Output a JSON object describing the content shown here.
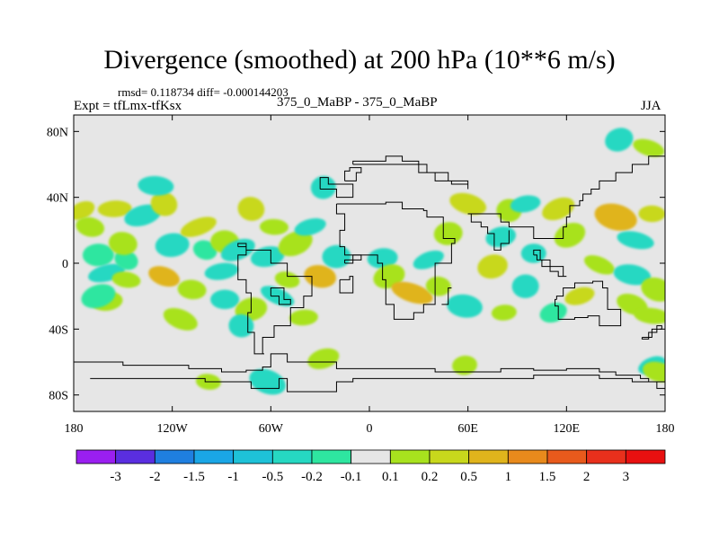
{
  "chart_data": {
    "type": "heatmap",
    "title": "Divergence (smoothed) at 200 hPa (10**6 m/s)",
    "stats": "rmsd= 0.118734 diff= -0.000144203",
    "experiment": "Expt = tfLmx-tfKsx",
    "case": "375_0_MaBP - 375_0_MaBP",
    "season": "JJA",
    "xlim": [
      -180,
      180
    ],
    "ylim": [
      -90,
      90
    ],
    "x_ticks": [
      {
        "value": -180,
        "label": "180"
      },
      {
        "value": -120,
        "label": "120W"
      },
      {
        "value": -60,
        "label": "60W"
      },
      {
        "value": 0,
        "label": "0"
      },
      {
        "value": 60,
        "label": "60E"
      },
      {
        "value": 120,
        "label": "120E"
      },
      {
        "value": 180,
        "label": "180"
      }
    ],
    "y_ticks": [
      {
        "value": 80,
        "label": "80N"
      },
      {
        "value": 40,
        "label": "40N"
      },
      {
        "value": 0,
        "label": "0"
      },
      {
        "value": -40,
        "label": "40S"
      },
      {
        "value": -80,
        "label": "80S"
      }
    ],
    "colorbar": {
      "levels": [
        "-3",
        "-2",
        "-1.5",
        "-1",
        "-0.5",
        "-0.2",
        "-0.1",
        "0.1",
        "0.2",
        "0.5",
        "1",
        "1.5",
        "2",
        "3"
      ],
      "colors": [
        "#9a1ff0",
        "#5a2ee0",
        "#1f7fe0",
        "#1aa6e6",
        "#1ec2d8",
        "#26d8c2",
        "#2ee6a0",
        "#e6e6e6",
        "#a8e21e",
        "#c8d81c",
        "#e0b41c",
        "#e88a1c",
        "#e85a1c",
        "#e8301c",
        "#e81010"
      ]
    },
    "background_color": "#e6e6e6",
    "outline_color": "#000000",
    "anomalies": [
      {
        "lon": -175,
        "lat": 32,
        "value": 0.3
      },
      {
        "lon": -170,
        "lat": 22,
        "value": 0.2
      },
      {
        "lon": -165,
        "lat": 5,
        "value": -0.15
      },
      {
        "lon": -160,
        "lat": -6,
        "value": -0.3
      },
      {
        "lon": -148,
        "lat": 2,
        "value": -0.15
      },
      {
        "lon": -150,
        "lat": 12,
        "value": 0.2
      },
      {
        "lon": -155,
        "lat": 33,
        "value": 0.3
      },
      {
        "lon": -138,
        "lat": 29,
        "value": -0.3
      },
      {
        "lon": -125,
        "lat": 36,
        "value": 0.3
      },
      {
        "lon": -148,
        "lat": -10,
        "value": 0.2
      },
      {
        "lon": -160,
        "lat": -23,
        "value": 0.2
      },
      {
        "lon": -165,
        "lat": -20,
        "value": -0.15
      },
      {
        "lon": -125,
        "lat": -8,
        "value": 0.6
      },
      {
        "lon": -108,
        "lat": -16,
        "value": 0.2
      },
      {
        "lon": -120,
        "lat": 11,
        "value": -0.3
      },
      {
        "lon": -104,
        "lat": 22,
        "value": 0.3
      },
      {
        "lon": -100,
        "lat": 8,
        "value": -0.15
      },
      {
        "lon": -88,
        "lat": 13,
        "value": 0.2
      },
      {
        "lon": -90,
        "lat": -5,
        "value": -0.3
      },
      {
        "lon": -80,
        "lat": 8,
        "value": -0.2
      },
      {
        "lon": -72,
        "lat": 33,
        "value": 0.3
      },
      {
        "lon": -58,
        "lat": 22,
        "value": 0.2
      },
      {
        "lon": -62,
        "lat": 4,
        "value": -0.3
      },
      {
        "lon": -45,
        "lat": 12,
        "value": 0.2
      },
      {
        "lon": -50,
        "lat": -10,
        "value": 0.2
      },
      {
        "lon": -88,
        "lat": -22,
        "value": -0.2
      },
      {
        "lon": -72,
        "lat": -28,
        "value": 0.2
      },
      {
        "lon": -56,
        "lat": -20,
        "value": -0.2
      },
      {
        "lon": -30,
        "lat": -8,
        "value": 0.6
      },
      {
        "lon": -20,
        "lat": 4,
        "value": -0.2
      },
      {
        "lon": -36,
        "lat": 22,
        "value": -0.2
      },
      {
        "lon": -115,
        "lat": -34,
        "value": 0.2
      },
      {
        "lon": -78,
        "lat": -38,
        "value": -0.2
      },
      {
        "lon": -40,
        "lat": -33,
        "value": 0.2
      },
      {
        "lon": -28,
        "lat": -58,
        "value": 0.2
      },
      {
        "lon": -62,
        "lat": -72,
        "value": -0.3
      },
      {
        "lon": -98,
        "lat": -72,
        "value": 0.2
      },
      {
        "lon": 8,
        "lat": 3,
        "value": -0.3
      },
      {
        "lon": 12,
        "lat": -8,
        "value": 0.2
      },
      {
        "lon": 26,
        "lat": -18,
        "value": 0.6
      },
      {
        "lon": 42,
        "lat": -14,
        "value": 0.2
      },
      {
        "lon": 48,
        "lat": 18,
        "value": 0.2
      },
      {
        "lon": 36,
        "lat": 2,
        "value": -0.2
      },
      {
        "lon": 60,
        "lat": 36,
        "value": 0.3
      },
      {
        "lon": 85,
        "lat": 32,
        "value": 0.2
      },
      {
        "lon": 95,
        "lat": 36,
        "value": -0.3
      },
      {
        "lon": 115,
        "lat": 33,
        "value": 0.3
      },
      {
        "lon": 150,
        "lat": 28,
        "value": 0.6
      },
      {
        "lon": 172,
        "lat": 30,
        "value": 0.3
      },
      {
        "lon": 80,
        "lat": 16,
        "value": -0.3
      },
      {
        "lon": 122,
        "lat": 17,
        "value": 0.2
      },
      {
        "lon": 162,
        "lat": 14,
        "value": -0.3
      },
      {
        "lon": 100,
        "lat": 6,
        "value": -0.2
      },
      {
        "lon": 75,
        "lat": -2,
        "value": 0.3
      },
      {
        "lon": 140,
        "lat": -1,
        "value": 0.2
      },
      {
        "lon": 160,
        "lat": -7,
        "value": -0.3
      },
      {
        "lon": 95,
        "lat": -14,
        "value": -0.3
      },
      {
        "lon": 128,
        "lat": -20,
        "value": 0.3
      },
      {
        "lon": 160,
        "lat": -25,
        "value": 0.2
      },
      {
        "lon": 58,
        "lat": -26,
        "value": -0.2
      },
      {
        "lon": 82,
        "lat": -30,
        "value": 0.2
      },
      {
        "lon": 112,
        "lat": -30,
        "value": -0.15
      },
      {
        "lon": 175,
        "lat": -16,
        "value": 0.2
      },
      {
        "lon": 172,
        "lat": -32,
        "value": 0.2
      },
      {
        "lon": 58,
        "lat": -62,
        "value": 0.2
      },
      {
        "lon": 152,
        "lat": 75,
        "value": -0.2
      },
      {
        "lon": 170,
        "lat": 70,
        "value": 0.2
      },
      {
        "lon": -130,
        "lat": 47,
        "value": -0.2
      },
      {
        "lon": -28,
        "lat": 46,
        "value": -0.2
      },
      {
        "lon": 172,
        "lat": -62,
        "value": -0.2
      },
      {
        "lon": 176,
        "lat": -66,
        "value": 0.2
      }
    ],
    "land_outlines": [
      [
        [
          -180,
          -60
        ],
        [
          -150,
          -60
        ],
        [
          -150,
          -62
        ],
        [
          -130,
          -62
        ],
        [
          -110,
          -64
        ],
        [
          -90,
          -66
        ],
        [
          -75,
          -65
        ],
        [
          -65,
          -63
        ],
        [
          -60,
          -60
        ],
        [
          -60,
          -55
        ],
        [
          -50,
          -55
        ],
        [
          -50,
          -60
        ],
        [
          -20,
          -60
        ],
        [
          -20,
          -64
        ],
        [
          10,
          -64
        ],
        [
          40,
          -66
        ],
        [
          60,
          -66
        ],
        [
          80,
          -64
        ],
        [
          100,
          -65
        ],
        [
          120,
          -64
        ],
        [
          140,
          -66
        ],
        [
          150,
          -68
        ],
        [
          165,
          -70
        ],
        [
          170,
          -72
        ],
        [
          180,
          -75
        ],
        [
          180,
          -90
        ],
        [
          -180,
          -90
        ],
        [
          -180,
          -60
        ]
      ],
      [
        [
          -170,
          -70
        ],
        [
          -125,
          -70
        ],
        [
          -100,
          -72
        ],
        [
          -80,
          -72
        ],
        [
          -72,
          -76
        ],
        [
          -62,
          -76
        ],
        [
          -55,
          -70
        ],
        [
          -50,
          -78
        ],
        [
          -35,
          -78
        ],
        [
          -20,
          -72
        ],
        [
          -10,
          -70
        ],
        [
          10,
          -70
        ],
        [
          40,
          -70
        ],
        [
          70,
          -70
        ],
        [
          100,
          -68
        ],
        [
          140,
          -70
        ],
        [
          160,
          -72
        ],
        [
          175,
          -76
        ],
        [
          180,
          -78
        ]
      ],
      [
        [
          -10,
          60
        ],
        [
          20,
          60
        ],
        [
          35,
          55
        ],
        [
          40,
          50
        ],
        [
          50,
          48
        ],
        [
          60,
          45
        ],
        [
          60,
          50
        ],
        [
          48,
          55
        ],
        [
          30,
          62
        ],
        [
          20,
          65
        ],
        [
          10,
          62
        ],
        [
          -10,
          60
        ]
      ],
      [
        [
          -20,
          36
        ],
        [
          -5,
          36
        ],
        [
          10,
          37
        ],
        [
          20,
          33
        ],
        [
          33,
          32
        ],
        [
          35,
          28
        ],
        [
          45,
          15
        ],
        [
          52,
          12
        ],
        [
          50,
          0
        ],
        [
          40,
          -10
        ],
        [
          40,
          -25
        ],
        [
          33,
          -30
        ],
        [
          27,
          -34
        ],
        [
          18,
          -34
        ],
        [
          15,
          -25
        ],
        [
          10,
          -10
        ],
        [
          8,
          0
        ],
        [
          5,
          5
        ],
        [
          -5,
          5
        ],
        [
          -15,
          10
        ],
        [
          -18,
          20
        ],
        [
          -15,
          30
        ],
        [
          -20,
          36
        ]
      ],
      [
        [
          -80,
          10
        ],
        [
          -75,
          5
        ],
        [
          -80,
          0
        ],
        [
          -80,
          -10
        ],
        [
          -75,
          -18
        ],
        [
          -72,
          -30
        ],
        [
          -74,
          -42
        ],
        [
          -70,
          -55
        ],
        [
          -64,
          -55
        ],
        [
          -65,
          -45
        ],
        [
          -58,
          -38
        ],
        [
          -48,
          -27
        ],
        [
          -40,
          -20
        ],
        [
          -35,
          -8
        ],
        [
          -50,
          0
        ],
        [
          -60,
          8
        ],
        [
          -75,
          12
        ],
        [
          -80,
          10
        ]
      ],
      [
        [
          60,
          30
        ],
        [
          75,
          30
        ],
        [
          80,
          25
        ],
        [
          85,
          22
        ],
        [
          92,
          22
        ],
        [
          100,
          15
        ],
        [
          108,
          15
        ],
        [
          118,
          22
        ],
        [
          120,
          28
        ],
        [
          122,
          35
        ],
        [
          128,
          38
        ],
        [
          130,
          42
        ],
        [
          135,
          45
        ],
        [
          140,
          50
        ],
        [
          150,
          55
        ],
        [
          160,
          60
        ],
        [
          170,
          65
        ],
        [
          180,
          65
        ]
      ],
      [
        [
          60,
          30
        ],
        [
          62,
          25
        ],
        [
          68,
          22
        ],
        [
          72,
          18
        ],
        [
          76,
          8
        ],
        [
          80,
          12
        ],
        [
          85,
          20
        ]
      ],
      [
        [
          100,
          5
        ],
        [
          102,
          2
        ],
        [
          105,
          -2
        ],
        [
          110,
          -5
        ],
        [
          115,
          -8
        ],
        [
          120,
          -8
        ],
        [
          118,
          -2
        ],
        [
          110,
          2
        ],
        [
          104,
          8
        ],
        [
          100,
          5
        ]
      ],
      [
        [
          114,
          -22
        ],
        [
          113,
          -26
        ],
        [
          115,
          -34
        ],
        [
          125,
          -33
        ],
        [
          133,
          -32
        ],
        [
          140,
          -38
        ],
        [
          150,
          -38
        ],
        [
          153,
          -28
        ],
        [
          145,
          -15
        ],
        [
          142,
          -11
        ],
        [
          136,
          -12
        ],
        [
          131,
          -12
        ],
        [
          125,
          -15
        ],
        [
          118,
          -20
        ],
        [
          114,
          -22
        ]
      ],
      [
        [
          166,
          -45
        ],
        [
          172,
          -40
        ],
        [
          178,
          -38
        ],
        [
          175,
          -42
        ],
        [
          170,
          -46
        ],
        [
          166,
          -45
        ]
      ],
      [
        [
          44,
          -25
        ],
        [
          48,
          -15
        ],
        [
          50,
          -15
        ],
        [
          48,
          -25
        ],
        [
          44,
          -25
        ]
      ],
      [
        [
          -60,
          -20
        ],
        [
          -55,
          -25
        ],
        [
          -48,
          -22
        ],
        [
          -52,
          -15
        ],
        [
          -60,
          -20
        ]
      ],
      [
        [
          -30,
          45
        ],
        [
          -20,
          40
        ],
        [
          -10,
          42
        ],
        [
          -10,
          48
        ],
        [
          -25,
          52
        ],
        [
          -30,
          45
        ]
      ],
      [
        [
          -15,
          50
        ],
        [
          -8,
          55
        ],
        [
          -5,
          58
        ],
        [
          -12,
          56
        ],
        [
          -15,
          50
        ]
      ],
      [
        [
          -18,
          -10
        ],
        [
          -12,
          -8
        ],
        [
          -10,
          -18
        ],
        [
          -18,
          -10
        ]
      ],
      [
        [
          -15,
          0
        ],
        [
          -10,
          5
        ],
        [
          -5,
          2
        ],
        [
          -15,
          0
        ]
      ]
    ]
  }
}
